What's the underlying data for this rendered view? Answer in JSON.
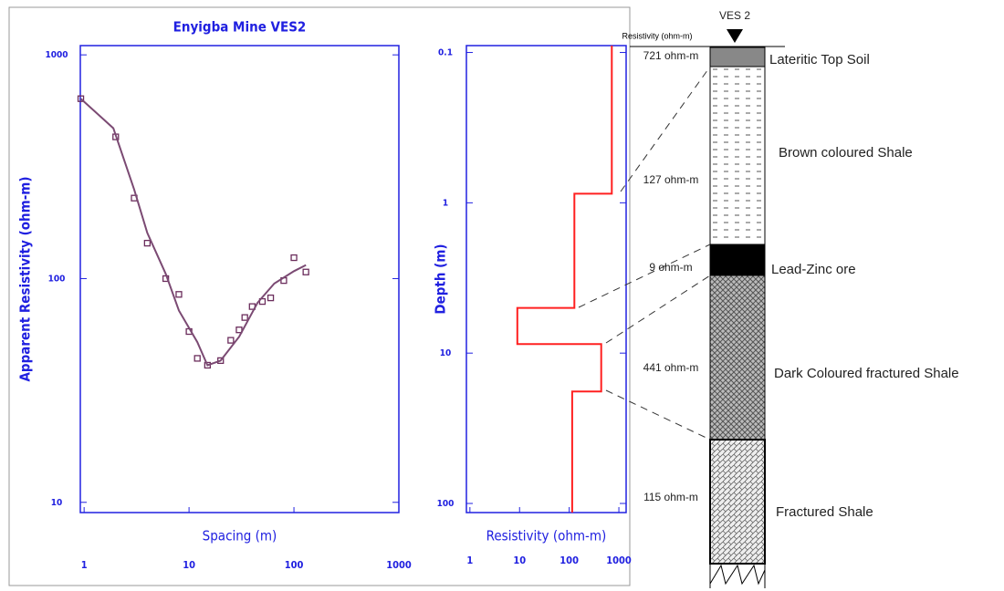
{
  "chart_data": [
    {
      "type": "line",
      "title": "Enyigba Mine VES2",
      "xlabel": "Spacing (m)",
      "ylabel": "Apparent Resistivity (ohm-m)",
      "xscale": "log",
      "yscale": "log",
      "xlim": [
        0.92,
        1000
      ],
      "ylim": [
        9,
        1100
      ],
      "xticks": [
        1,
        10,
        100,
        1000
      ],
      "yticks": [
        10,
        100,
        1000
      ],
      "axis_color": "#2020e0",
      "series": [
        {
          "marker": "square",
          "color": "#6b2d5c",
          "x": [
            0.93,
            2,
            3,
            4,
            6,
            8,
            10,
            12,
            15,
            20,
            25,
            30,
            34,
            40,
            50,
            60,
            80,
            100,
            130
          ],
          "values": [
            637,
            430,
            229,
            144,
            100,
            85,
            58,
            44,
            41,
            43,
            53,
            59,
            67,
            75,
            79,
            82,
            98,
            124,
            107
          ]
        },
        {
          "color": "#7b4a73",
          "x": [
            0.93,
            1.9,
            3,
            4,
            6,
            8,
            12,
            15,
            20,
            30,
            45,
            65,
            100,
            130
          ],
          "values": [
            637,
            470,
            250,
            160,
            105,
            72,
            52,
            41,
            43,
            55,
            78,
            95,
            108,
            115
          ]
        }
      ]
    },
    {
      "type": "line",
      "xlabel": "Resistivity (ohm-m)",
      "ylabel": "Depth (m)",
      "xscale": "log",
      "yscale": "log",
      "xlim": [
        0.85,
        1400
      ],
      "ylim": [
        115,
        0.09
      ],
      "xticks": [
        1,
        10,
        100,
        1000
      ],
      "yticks": [
        0.1,
        1,
        10,
        100
      ],
      "axis_color": "#2020e0",
      "series": [
        {
          "color": "#ff2020",
          "x": [
            721,
            721,
            127,
            127,
            9,
            9,
            441,
            441,
            115,
            115
          ],
          "values": [
            0.09,
            0.87,
            0.87,
            5,
            5,
            8.7,
            8.7,
            18,
            18,
            115
          ]
        }
      ]
    }
  ],
  "column": {
    "title": "VES 2",
    "header": "Resistivity (ohm-m)",
    "layers": [
      {
        "name": "Lateritic Top Soil",
        "resistivity": "721 ohm-m"
      },
      {
        "name": "Brown coloured Shale",
        "resistivity": "127 ohm-m"
      },
      {
        "name": "Lead-Zinc ore",
        "resistivity": "9 ohm-m"
      },
      {
        "name": "Dark Coloured fractured Shale",
        "resistivity": "441 ohm-m"
      },
      {
        "name": "Fractured Shale",
        "resistivity": "115 ohm-m"
      }
    ]
  }
}
